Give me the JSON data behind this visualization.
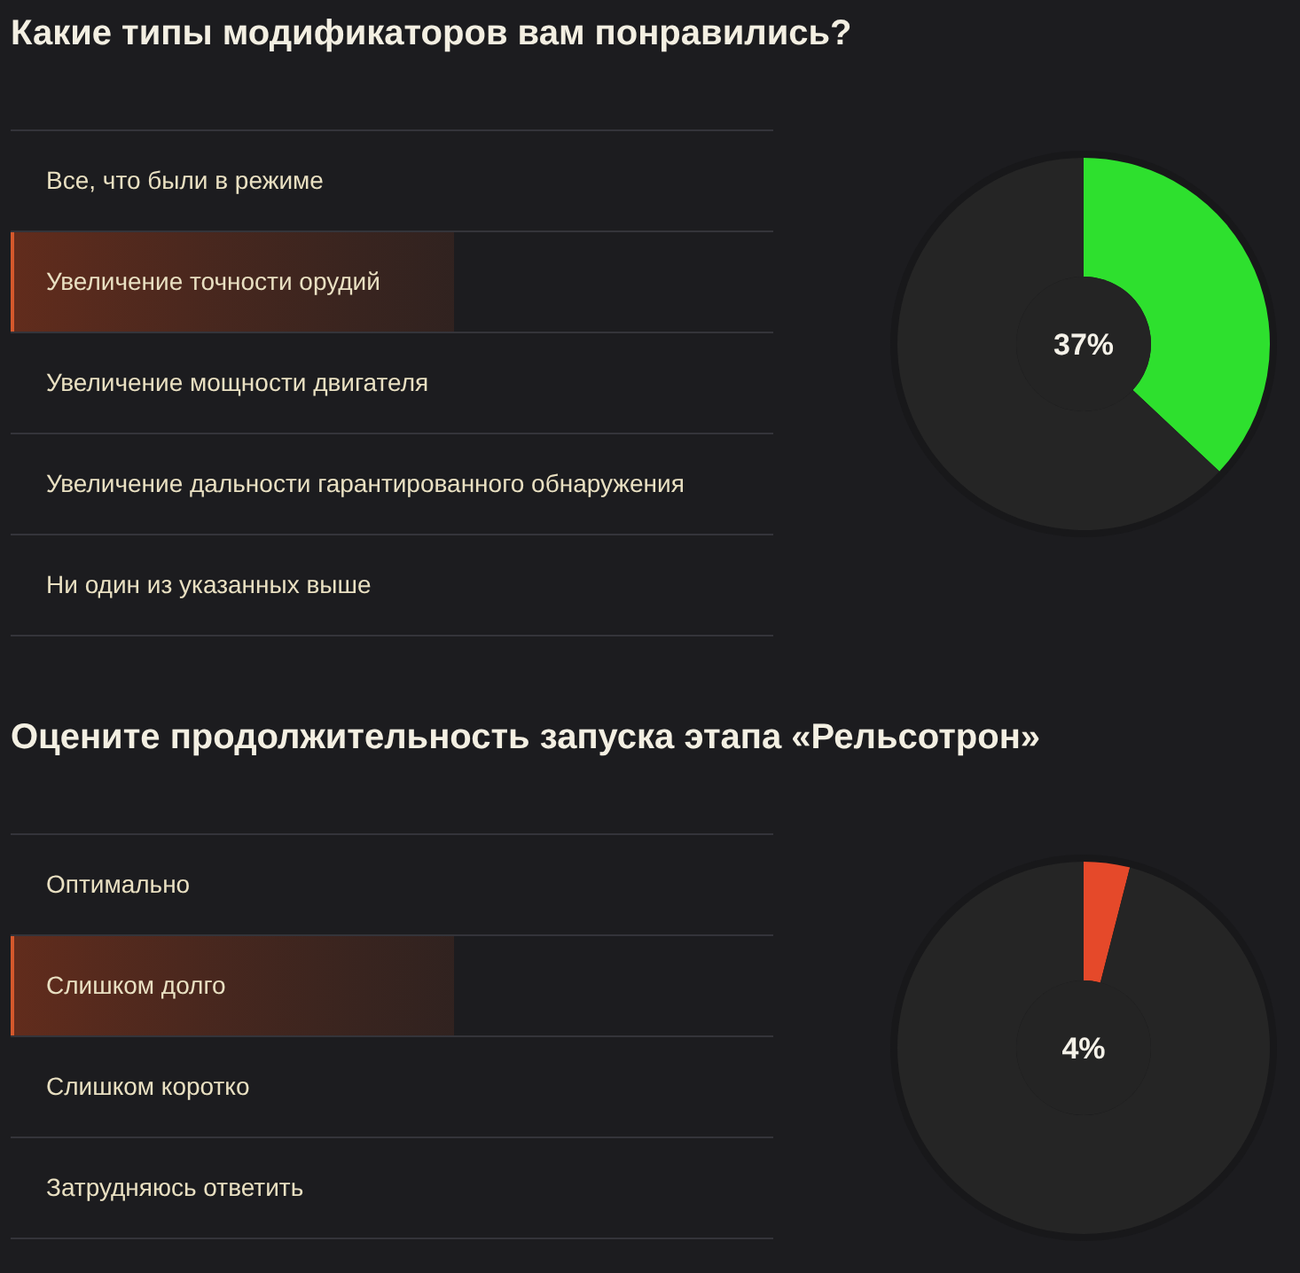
{
  "chart_data": [
    {
      "type": "other",
      "title": "Какие типы модификаторов вам понравились?",
      "annotations": [
        "Все, что были в режиме",
        "Увеличение точности орудий",
        "Увеличение мощности двигателя",
        "Увеличение дальности гарантированного обнаружения",
        "Ни один из указанных выше"
      ]
    },
    {
      "type": "donut",
      "categories": [
        null,
        null
      ],
      "values": [
        37,
        63
      ],
      "colors": [
        "#2ee02e",
        "#252525"
      ],
      "annotations": [
        "37%"
      ]
    },
    {
      "type": "other",
      "title": "Оцените продолжительность запуска этапа «Рельсотрон»",
      "annotations": [
        "Оптимально",
        "Слишком долго",
        "Слишком коротко",
        "Затрудняюсь ответить"
      ]
    },
    {
      "type": "donut",
      "categories": [
        null,
        null
      ],
      "values": [
        4,
        96
      ],
      "colors": [
        "#e5492a",
        "#252525"
      ],
      "annotations": [
        "4%"
      ]
    }
  ]
}
